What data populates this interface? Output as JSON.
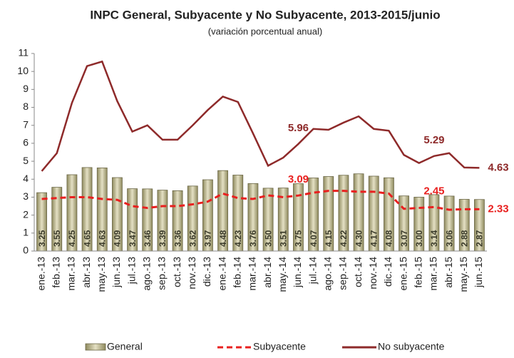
{
  "chart_data": {
    "type": "bar-line",
    "title": "INPC General, Subyacente y No Subyacente, 2013-2015/junio",
    "subtitle": "(variación porcentual anual)",
    "categories": [
      "ene.-13",
      "feb.-13",
      "mar.-13",
      "abr.-13",
      "may.-13",
      "jun.-13",
      "jul.-13",
      "ago.-13",
      "sep.-13",
      "oct.-13",
      "nov.-13",
      "dic.-13",
      "ene.-14",
      "feb.-14",
      "mar.-14",
      "abr.-14",
      "may.-14",
      "jun.-14",
      "jul.-14",
      "ago.-14",
      "sep.-14",
      "oct.-14",
      "nov.-14",
      "dic.-14",
      "ene.-15",
      "feb.-15",
      "mar.-15",
      "abr.-15",
      "may.-15",
      "jun.-15"
    ],
    "ylim": [
      0,
      11
    ],
    "yticks": [
      0,
      1,
      2,
      3,
      4,
      5,
      6,
      7,
      8,
      9,
      10,
      11
    ],
    "grid": false,
    "series": [
      {
        "name": "General",
        "type": "bar",
        "color": "#c4bd8a",
        "values": [
          3.25,
          3.55,
          4.25,
          4.65,
          4.63,
          4.09,
          3.47,
          3.46,
          3.39,
          3.36,
          3.62,
          3.97,
          4.48,
          4.23,
          3.76,
          3.5,
          3.51,
          3.75,
          4.07,
          4.15,
          4.22,
          4.3,
          4.17,
          4.08,
          3.07,
          3,
          3.14,
          3.06,
          2.88,
          2.87
        ],
        "value_labels": [
          "3.25",
          "3.55",
          "4.25",
          "4.65",
          "4.63",
          "4.09",
          "3.47",
          "3.46",
          "3.39",
          "3.36",
          "3.62",
          "3.97",
          "4.48",
          "4.23",
          "3.76",
          "3.50",
          "3.51",
          "3.75",
          "4.07",
          "4.15",
          "4.22",
          "4.30",
          "4.17",
          "4.08",
          "3.07",
          "3.00",
          "3.14",
          "3.06",
          "2.88",
          "2.87"
        ]
      },
      {
        "name": "Subyacente",
        "type": "line",
        "dashed": true,
        "color": "#e8201f",
        "values": [
          2.9,
          2.95,
          3.0,
          3.0,
          2.9,
          2.85,
          2.5,
          2.4,
          2.5,
          2.5,
          2.6,
          2.75,
          3.2,
          2.95,
          2.9,
          3.1,
          3.0,
          3.09,
          3.25,
          3.35,
          3.35,
          3.3,
          3.3,
          3.2,
          2.35,
          2.4,
          2.45,
          2.3,
          2.33,
          2.33
        ],
        "value_labels": [
          null,
          null,
          null,
          null,
          null,
          null,
          null,
          null,
          null,
          null,
          null,
          null,
          null,
          null,
          null,
          null,
          null,
          "3.09",
          null,
          null,
          null,
          null,
          null,
          null,
          null,
          null,
          "2.45",
          null,
          null,
          "2.33"
        ]
      },
      {
        "name": "No subyacente",
        "type": "line",
        "dashed": false,
        "color": "#8e2a2a",
        "values": [
          4.45,
          5.45,
          8.25,
          10.3,
          10.55,
          8.35,
          6.65,
          7.0,
          6.2,
          6.2,
          7.0,
          7.85,
          8.6,
          8.3,
          6.55,
          4.75,
          5.2,
          5.96,
          6.8,
          6.75,
          7.15,
          7.5,
          6.8,
          6.7,
          5.35,
          4.9,
          5.29,
          5.45,
          4.65,
          4.63
        ],
        "value_labels": [
          null,
          null,
          null,
          null,
          null,
          null,
          null,
          null,
          null,
          null,
          null,
          null,
          null,
          null,
          null,
          null,
          null,
          "5.96",
          null,
          null,
          null,
          null,
          null,
          null,
          null,
          null,
          "5.29",
          null,
          null,
          "4.63"
        ]
      }
    ]
  }
}
